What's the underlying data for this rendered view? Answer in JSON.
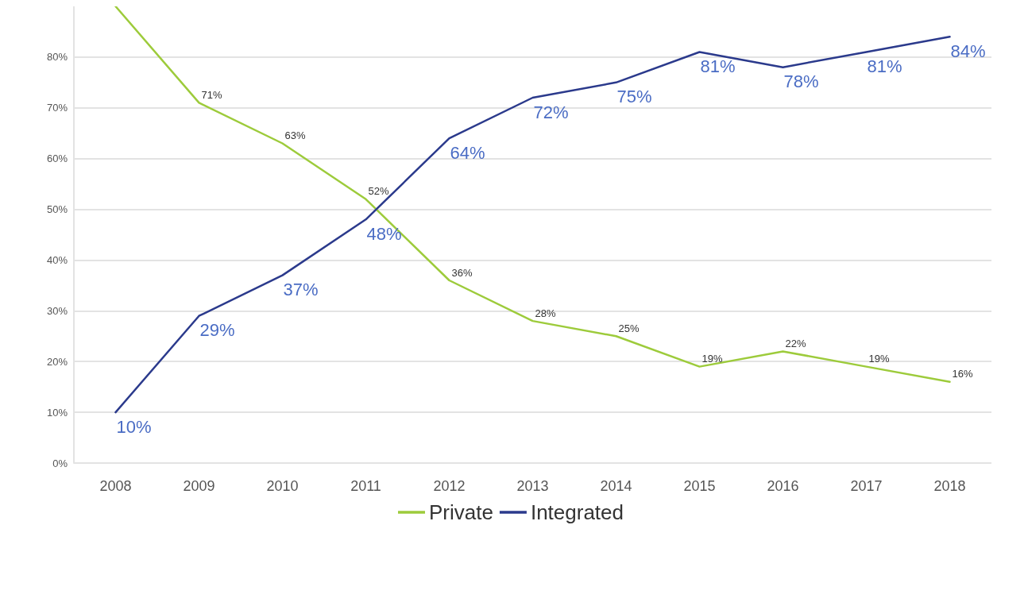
{
  "chart_data": {
    "type": "line",
    "categories": [
      "2008",
      "2009",
      "2010",
      "2011",
      "2012",
      "2013",
      "2014",
      "2015",
      "2016",
      "2017",
      "2018"
    ],
    "series": [
      {
        "name": "Private",
        "color": "#9dcb3b",
        "values": [
          90,
          71,
          63,
          52,
          36,
          28,
          25,
          19,
          22,
          19,
          16
        ],
        "value_labels": [
          null,
          "71%",
          "63%",
          "52%",
          "36%",
          "28%",
          "25%",
          "19%",
          "22%",
          "19%",
          "16%"
        ]
      },
      {
        "name": "Integrated",
        "color": "#2b3a8c",
        "values": [
          10,
          29,
          37,
          48,
          64,
          72,
          75,
          81,
          78,
          81,
          84
        ],
        "value_labels": [
          "10%",
          "29%",
          "37%",
          "48%",
          "64%",
          "72%",
          "75%",
          "81%",
          "78%",
          "81%",
          "84%"
        ]
      }
    ],
    "ylim": [
      0,
      90
    ],
    "yticks": [
      {
        "value": 0,
        "label": "0%"
      },
      {
        "value": 10,
        "label": "10%"
      },
      {
        "value": 20,
        "label": "20%"
      },
      {
        "value": 30,
        "label": "30%"
      },
      {
        "value": 40,
        "label": "40%"
      },
      {
        "value": 50,
        "label": "50%"
      },
      {
        "value": 60,
        "label": "60%"
      },
      {
        "value": 70,
        "label": "70%"
      },
      {
        "value": 80,
        "label": "80%"
      }
    ],
    "grid": "y",
    "legend": "bottom",
    "marker": "none",
    "line_style": "solid"
  }
}
